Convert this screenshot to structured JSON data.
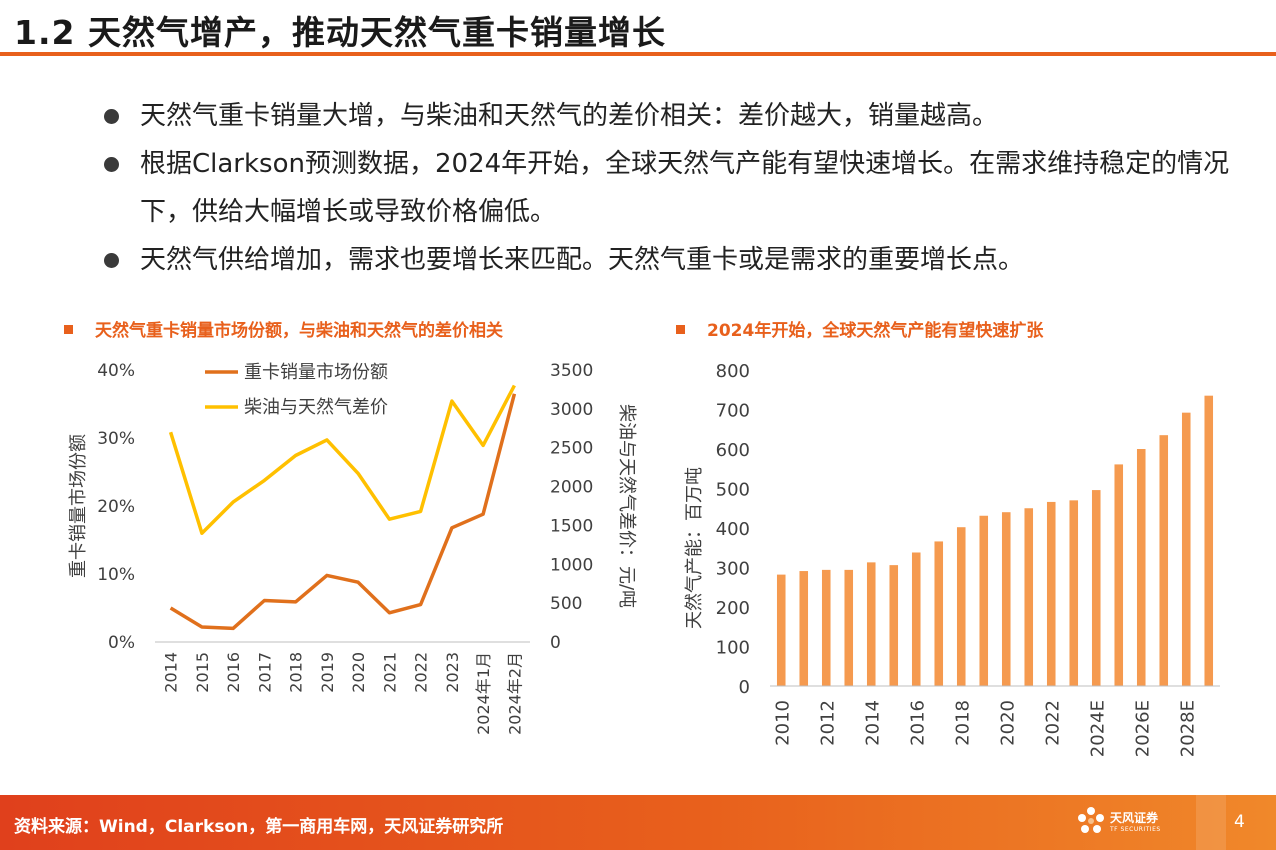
{
  "header": {
    "title": "1.2 天然气增产，推动天然气重卡销量增长",
    "accent_color": "#e8601c"
  },
  "bullets": [
    "天然气重卡销量大增，与柴油和天然气的差价相关：差价越大，销量越高。",
    "根据Clarkson预测数据，2024年开始，全球天然气产能有望快速增长。在需求维持稳定的情况下，供给大幅增长或导致价格偏低。",
    "天然气供给增加，需求也要增长来匹配。天然气重卡或是需求的重要增长点。"
  ],
  "chart_left": {
    "heading": "天然气重卡销量市场份额，与柴油和天然气的差价相关"
  },
  "chart_right": {
    "heading": "2024年开始，全球天然气产能有望快速扩张"
  },
  "chart_data": [
    {
      "type": "line",
      "categories": [
        "2014",
        "2015",
        "2016",
        "2017",
        "2018",
        "2019",
        "2020",
        "2021",
        "2022",
        "2023",
        "2024年1月",
        "2024年2月"
      ],
      "series": [
        {
          "name": "重卡销量市场份额",
          "axis": "left",
          "color": "#e0701c",
          "values": [
            0.05,
            0.022,
            0.02,
            0.061,
            0.059,
            0.098,
            0.088,
            0.043,
            0.055,
            0.168,
            0.188,
            0.365
          ]
        },
        {
          "name": "柴油与天然气差价",
          "axis": "right",
          "color": "#ffc000",
          "values": [
            2700,
            1400,
            1800,
            2080,
            2400,
            2600,
            2170,
            1580,
            1680,
            3100,
            2530,
            3300
          ]
        }
      ],
      "ylabel": "重卡销量市场份额",
      "ylabel_right": "柴油与天然气差价：元/吨",
      "ylim": [
        0,
        0.4
      ],
      "ylim_right": [
        0,
        3500
      ],
      "yticks": [
        "0%",
        "10%",
        "20%",
        "30%",
        "40%"
      ],
      "yticks_right": [
        "0",
        "500",
        "1000",
        "1500",
        "2000",
        "2500",
        "3000",
        "3500"
      ],
      "legend": "top-center",
      "grid": false
    },
    {
      "type": "bar",
      "categories": [
        "2010",
        "2011",
        "2012",
        "2013",
        "2014",
        "2015",
        "2016",
        "2017",
        "2018",
        "2019",
        "2020",
        "2021",
        "2022",
        "2023",
        "2024E",
        "2025E",
        "2026E",
        "2027E",
        "2028E",
        "2029E"
      ],
      "xtick_labels": [
        "2010",
        "2012",
        "2014",
        "2016",
        "2018",
        "2020",
        "2022",
        "2024E",
        "2026E",
        "2028E"
      ],
      "values": [
        282,
        291,
        294,
        294,
        313,
        306,
        338,
        366,
        402,
        431,
        440,
        450,
        466,
        470,
        496,
        561,
        600,
        635,
        692,
        735
      ],
      "ylabel": "天然气产能：百万吨",
      "ylim": [
        0,
        800
      ],
      "yticks": [
        "0",
        "100",
        "200",
        "300",
        "400",
        "500",
        "600",
        "700",
        "800"
      ],
      "color": "#f59a4f",
      "grid": false
    }
  ],
  "footer": {
    "source": "资料来源：Wind，Clarkson，第一商用车网，天风证券研究所",
    "logo_text": "天风证券",
    "logo_sub": "TF SECURITIES",
    "page": "4"
  }
}
